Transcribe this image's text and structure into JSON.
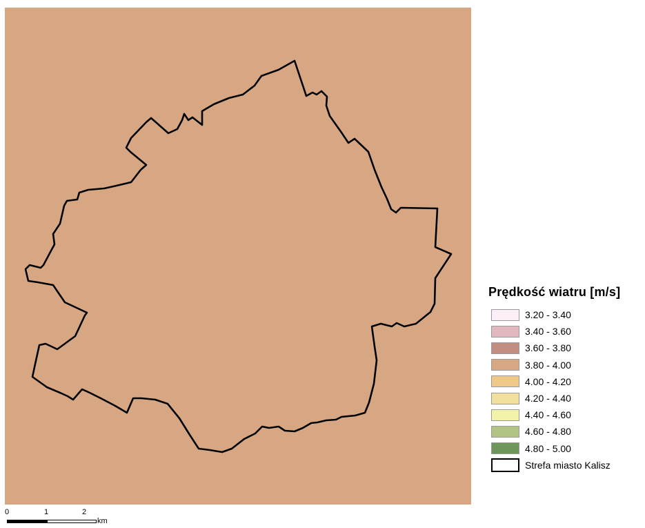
{
  "map": {
    "background_color": "#D7A783",
    "boundary_color": "#000000"
  },
  "legend": {
    "title": "Prędkość wiatru [m/s]",
    "items": [
      {
        "label": "3.20 - 3.40",
        "color": "#FCEFF7"
      },
      {
        "label": "3.40 - 3.60",
        "color": "#E1B7C0"
      },
      {
        "label": "3.60 - 3.80",
        "color": "#C38E82"
      },
      {
        "label": "3.80 - 4.00",
        "color": "#D7A783"
      },
      {
        "label": "4.00 - 4.20",
        "color": "#F0C988"
      },
      {
        "label": "4.20 - 4.40",
        "color": "#F2E09E"
      },
      {
        "label": "4.40 - 4.60",
        "color": "#F3F2A9"
      },
      {
        "label": "4.60 - 4.80",
        "color": "#B2C484"
      },
      {
        "label": "4.80 - 5.00",
        "color": "#6E955A"
      }
    ],
    "boundary_label": "Strefa miasto Kalisz"
  },
  "scalebar": {
    "ticks": [
      "0",
      "1",
      "2"
    ],
    "unit": "km"
  }
}
